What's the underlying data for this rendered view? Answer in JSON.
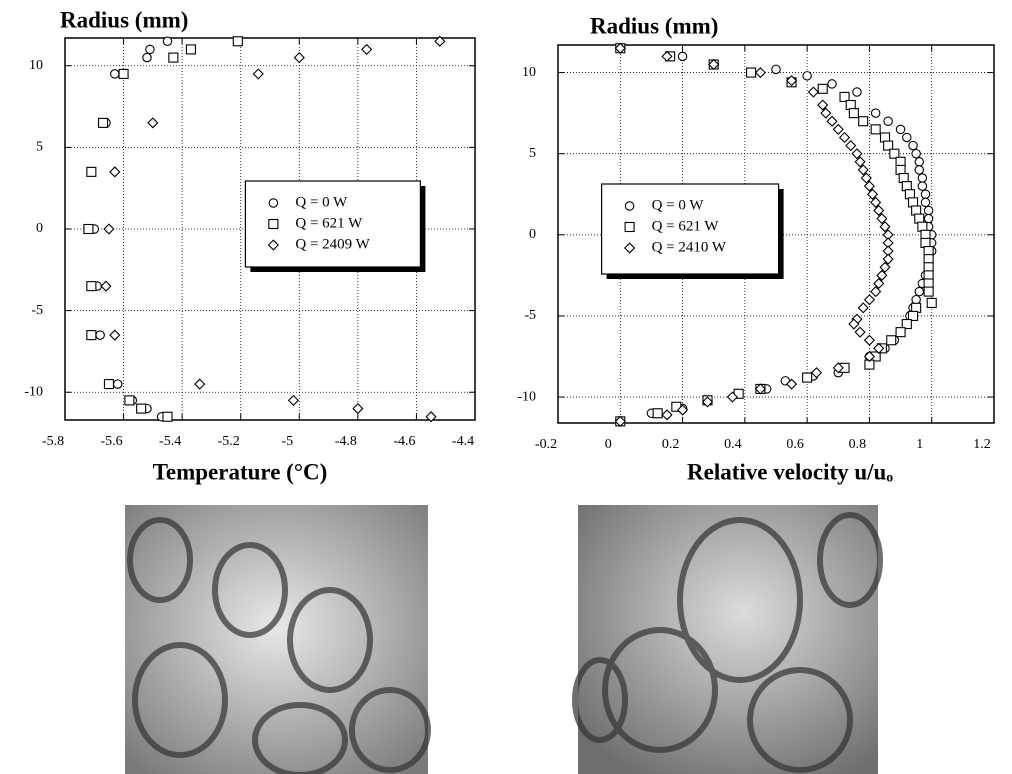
{
  "chart_data": [
    {
      "type": "scatter",
      "title": "Radius (mm)",
      "xlabel": "Temperature (°C)",
      "xlim": [
        -5.8,
        -4.4
      ],
      "xticks": [
        -5.8,
        -5.6,
        -5.4,
        -5.2,
        -5,
        -4.8,
        -4.6,
        -4.4
      ],
      "ylim": [
        -11.7,
        11.7
      ],
      "yticks": [
        -10,
        -5,
        0,
        5,
        10
      ],
      "grid": true,
      "legend": "center right",
      "series": [
        {
          "name": "Q = 0 W",
          "marker": "circle",
          "color": "#000000",
          "x": [
            -5.45,
            -5.51,
            -5.52,
            -5.63,
            -5.66,
            -5.71,
            -5.7,
            -5.69,
            -5.68,
            -5.62,
            -5.57,
            -5.52,
            -5.47
          ],
          "values": [
            11.5,
            11,
            10.5,
            9.5,
            6.5,
            3.5,
            0,
            -3.5,
            -6.5,
            -9.5,
            -10.5,
            -11,
            -11.5
          ]
        },
        {
          "name": "Q = 621 W",
          "marker": "square",
          "color": "#000000",
          "x": [
            -5.21,
            -5.37,
            -5.43,
            -5.6,
            -5.67,
            -5.71,
            -5.72,
            -5.71,
            -5.71,
            -5.65,
            -5.58,
            -5.54,
            -5.45
          ],
          "values": [
            11.5,
            11,
            10.5,
            9.5,
            6.5,
            3.5,
            0,
            -3.5,
            -6.5,
            -9.5,
            -10.5,
            -11,
            -11.5
          ]
        },
        {
          "name": "Q = 2409 W",
          "marker": "diamond",
          "color": "#000000",
          "x": [
            -4.52,
            -4.77,
            -5,
            -5.14,
            -5.5,
            -5.63,
            -5.65,
            -5.66,
            -5.63,
            -5.34,
            -5.02,
            -4.8,
            -4.55
          ],
          "values": [
            11.5,
            11,
            10.5,
            9.5,
            6.5,
            3.5,
            0,
            -3.5,
            -6.5,
            -9.5,
            -10.5,
            -11,
            -11.5
          ]
        }
      ]
    },
    {
      "type": "scatter",
      "title": "Radius (mm)",
      "xlabel": "Relative velocity u/uₒ",
      "xlim": [
        -0.2,
        1.2
      ],
      "xticks": [
        -0.2,
        0,
        0.2,
        0.4,
        0.6,
        0.8,
        1,
        1.2
      ],
      "ylim": [
        -11.6,
        11.7
      ],
      "yticks": [
        -10,
        -5,
        0,
        5,
        10
      ],
      "grid": true,
      "legend": "center left",
      "series": [
        {
          "name": "Q = 0 W",
          "marker": "circle",
          "color": "#000000",
          "x": [
            0,
            0.2,
            0.5,
            0.6,
            0.68,
            0.76,
            0.82,
            0.86,
            0.9,
            0.92,
            0.94,
            0.95,
            0.96,
            0.96,
            0.97,
            0.97,
            0.98,
            0.98,
            0.99,
            0.99,
            0.99,
            1,
            1,
            1,
            0.99,
            0.99,
            0.98,
            0.97,
            0.96,
            0.95,
            0.94,
            0.93,
            0.92,
            0.9,
            0.88,
            0.85,
            0.8,
            0.7,
            0.62,
            0.53,
            0.47,
            0.38,
            0.28,
            0.2,
            0.1,
            0
          ],
          "values": [
            11.5,
            11,
            10.2,
            9.8,
            9.3,
            8.8,
            7.5,
            7,
            6.5,
            6,
            5.5,
            5,
            4.5,
            4,
            3.5,
            3,
            2.5,
            2,
            1.5,
            1,
            0.5,
            0,
            -0.5,
            -1,
            -1.5,
            -2,
            -2.5,
            -3,
            -3.5,
            -4,
            -4.5,
            -5,
            -5.5,
            -6,
            -6.5,
            -7,
            -7.5,
            -8.5,
            -8.7,
            -9,
            -9.5,
            -9.8,
            -10.2,
            -10.7,
            -11,
            -11.5
          ]
        },
        {
          "name": "Q = 621 W",
          "marker": "square",
          "color": "#000000",
          "x": [
            0,
            0.16,
            0.3,
            0.42,
            0.55,
            0.65,
            0.72,
            0.74,
            0.75,
            0.78,
            0.82,
            0.85,
            0.86,
            0.88,
            0.9,
            0.9,
            0.91,
            0.92,
            0.93,
            0.94,
            0.95,
            0.96,
            0.97,
            0.98,
            0.98,
            0.99,
            0.99,
            0.99,
            0.99,
            0.99,
            0.99,
            1,
            0.95,
            0.94,
            0.92,
            0.9,
            0.87,
            0.84,
            0.82,
            0.8,
            0.72,
            0.6,
            0.45,
            0.38,
            0.28,
            0.18,
            0.12,
            0
          ],
          "values": [
            11.5,
            11,
            10.5,
            10,
            9.4,
            9,
            8.5,
            8,
            7.5,
            7,
            6.5,
            6,
            5.5,
            5,
            4.5,
            4,
            3.5,
            3,
            2.5,
            2,
            1.5,
            1,
            0.5,
            0,
            -0.5,
            -1,
            -1.5,
            -2,
            -2.5,
            -3,
            -3.5,
            -4.2,
            -4.5,
            -5,
            -5.5,
            -6,
            -6.5,
            -7,
            -7.5,
            -8,
            -8.2,
            -8.8,
            -9.5,
            -9.8,
            -10.2,
            -10.6,
            -11,
            -11.5
          ]
        },
        {
          "name": "Q = 2410 W",
          "marker": "diamond",
          "color": "#000000",
          "x": [
            0,
            0.15,
            0.3,
            0.45,
            0.55,
            0.62,
            0.65,
            0.66,
            0.68,
            0.7,
            0.72,
            0.74,
            0.76,
            0.77,
            0.78,
            0.79,
            0.8,
            0.81,
            0.82,
            0.83,
            0.84,
            0.85,
            0.86,
            0.86,
            0.86,
            0.86,
            0.85,
            0.84,
            0.83,
            0.82,
            0.8,
            0.78,
            0.76,
            0.75,
            0.77,
            0.8,
            0.83,
            0.8,
            0.7,
            0.63,
            0.55,
            0.45,
            0.36,
            0.28,
            0.2,
            0.15,
            0
          ],
          "values": [
            11.5,
            11,
            10.5,
            10,
            9.5,
            8.8,
            8,
            7.5,
            7,
            6.5,
            6,
            5.5,
            5,
            4.5,
            4,
            3.5,
            3,
            2.5,
            2,
            1.5,
            1,
            0.5,
            0,
            -0.5,
            -1,
            -1.5,
            -2,
            -2.5,
            -3,
            -3.5,
            -4,
            -4.5,
            -5.2,
            -5.5,
            -6,
            -6.5,
            -7,
            -7.5,
            -8.2,
            -8.5,
            -9.2,
            -9.5,
            -10,
            -10.3,
            -10.8,
            -11.1,
            -11.5
          ]
        }
      ]
    }
  ]
}
